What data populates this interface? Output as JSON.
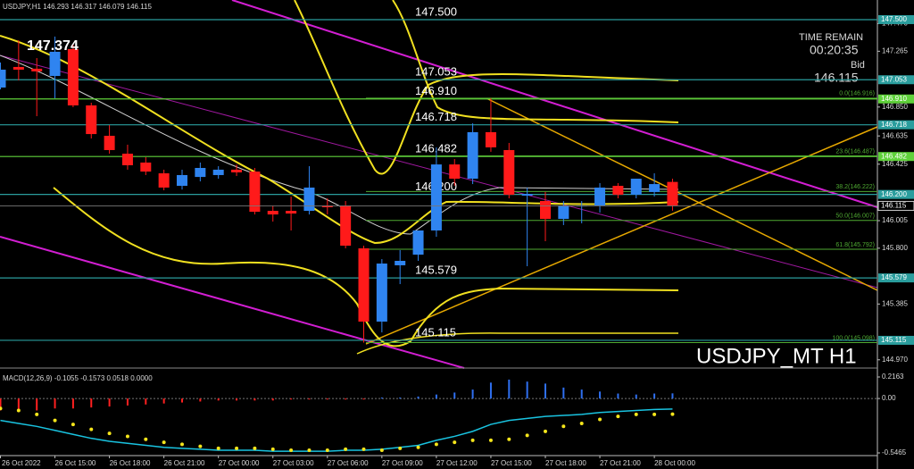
{
  "chart_data": [
    {
      "type": "candlestick",
      "header": "USDJPY,H1  146.293 146.317 146.079 146.115",
      "watermark": "USDJPY_MT H1",
      "timer_title": "TIME REMAIN",
      "timer": "00:20:35",
      "bid_label": "Bid",
      "bid": 146.115,
      "up_color": "#2f84f0",
      "down_color": "#ff1a1a",
      "ylim": [
        144.922,
        147.646
      ],
      "yticks": [
        {
          "value": 147.47,
          "label": "147.470"
        },
        147.265,
        {
          "value": 146.85,
          "label": "146.850"
        },
        146.635,
        146.425,
        146.005,
        {
          "value": 145.8,
          "label": "145.800"
        },
        145.385,
        {
          "value": 144.97,
          "label": "144.970"
        }
      ],
      "categories": [
        "26 Oct 2022",
        null,
        null,
        "26 Oct 15:00",
        null,
        null,
        "26 Oct 18:00",
        null,
        null,
        "26 Oct 21:00",
        null,
        null,
        "27 Oct 00:00",
        null,
        null,
        "27 Oct 03:00",
        null,
        null,
        "27 Oct 06:00",
        null,
        null,
        "27 Oct 09:00",
        null,
        null,
        "27 Oct 12:00",
        null,
        null,
        "27 Oct 15:00",
        null,
        null,
        "27 Oct 18:00",
        null,
        null,
        "27 Oct 21:00",
        null,
        null,
        "28 Oct 00:00",
        null
      ],
      "candles": [
        [
          146.995,
          147.181,
          146.982,
          147.128
        ],
        [
          147.148,
          147.347,
          147.048,
          147.128
        ],
        [
          147.135,
          147.214,
          146.782,
          147.115
        ],
        [
          147.081,
          147.374,
          146.915,
          147.261
        ],
        [
          147.281,
          147.314,
          146.849,
          146.862
        ],
        [
          146.862,
          146.882,
          146.616,
          146.649
        ],
        [
          146.636,
          146.716,
          146.503,
          146.53
        ],
        [
          146.503,
          146.57,
          146.384,
          146.417
        ],
        [
          146.437,
          146.477,
          146.344,
          146.37
        ],
        [
          146.357,
          146.384,
          146.231,
          146.251
        ],
        [
          146.264,
          146.384,
          146.237,
          146.344
        ],
        [
          146.33,
          146.437,
          146.297,
          146.397
        ],
        [
          146.344,
          146.41,
          146.317,
          146.384
        ],
        [
          146.384,
          146.423,
          146.337,
          146.364
        ],
        [
          146.37,
          146.397,
          146.051,
          146.071
        ],
        [
          146.078,
          146.118,
          145.998,
          146.051
        ],
        [
          146.078,
          146.184,
          145.932,
          146.058
        ],
        [
          146.078,
          146.41,
          146.051,
          146.251
        ],
        [
          146.118,
          146.171,
          146.051,
          146.105
        ],
        [
          146.118,
          146.151,
          145.799,
          145.819
        ],
        [
          145.799,
          145.819,
          145.098,
          145.254
        ],
        [
          145.254,
          145.719,
          145.174,
          145.686
        ],
        [
          145.673,
          145.786,
          145.533,
          145.706
        ],
        [
          145.752,
          145.932,
          145.706,
          145.932
        ],
        [
          145.932,
          146.55,
          145.885,
          146.423
        ],
        [
          146.423,
          146.463,
          146.264,
          146.317
        ],
        [
          146.317,
          146.729,
          146.277,
          146.663
        ],
        [
          146.663,
          146.916,
          146.517,
          146.55
        ],
        [
          146.53,
          146.583,
          146.171,
          146.198
        ],
        [
          146.191,
          146.251,
          145.666,
          146.204
        ],
        [
          146.151,
          146.218,
          145.852,
          146.018
        ],
        [
          146.018,
          146.151,
          145.972,
          146.118
        ],
        [
          146.111,
          146.151,
          145.985,
          146.118
        ],
        [
          146.118,
          146.284,
          146.065,
          146.251
        ],
        [
          146.264,
          146.284,
          146.171,
          146.198
        ],
        [
          146.198,
          146.317,
          146.171,
          146.317
        ],
        [
          146.218,
          146.357,
          146.184,
          146.277
        ],
        [
          146.293,
          146.317,
          146.079,
          146.115
        ]
      ],
      "levels": [
        {
          "value": 147.5,
          "label": "147.500",
          "color": "#2a9d9d"
        },
        {
          "value": 147.053,
          "label": "147.053",
          "color": "#2a9d9d"
        },
        {
          "value": 146.91,
          "label": "146.910",
          "color": "#5fd13a"
        },
        {
          "value": 146.718,
          "label": "146.718",
          "color": "#2a9d9d"
        },
        {
          "value": 146.482,
          "label": "146.482",
          "color": "#5fd13a"
        },
        {
          "value": 146.2,
          "label": "146.200",
          "color": "#2a9d9d"
        },
        {
          "value": 145.579,
          "label": "145.579",
          "color": "#2a9d9d"
        },
        {
          "value": 145.115,
          "label": "145.115",
          "color": "#2a9d9d"
        }
      ],
      "fib_color": "#4faa32",
      "fibs": [
        {
          "value": 146.916,
          "label": "0.0(146.916)"
        },
        {
          "value": 146.487,
          "label": "23.6(146.487)"
        },
        {
          "value": 146.222,
          "label": "38.2(146.222)"
        },
        {
          "value": 146.007,
          "label": "50.0(146.007)"
        },
        {
          "value": 145.792,
          "label": "61.8(145.792)"
        },
        {
          "value": 145.098,
          "label": "100.0(145.098)"
        }
      ]
    },
    {
      "type": "macd",
      "title": "MACD(12,26,9) -0.1055 -0.1573 0.0518 0.0000",
      "ylim": [
        -0.5465,
        0.2163
      ],
      "yticks": [
        0.2163,
        {
          "value": 0,
          "label": "0.00"
        },
        -0.5465
      ],
      "hist_up_color": "#2f6ff0",
      "hist_down_color": "#ff2020",
      "macd_color": "#19c3e0",
      "signal_color": "#f5e51b",
      "histogram": [
        -0.12,
        -0.13,
        -0.12,
        -0.1,
        -0.1,
        -0.09,
        -0.08,
        -0.07,
        -0.06,
        -0.05,
        -0.04,
        -0.03,
        -0.02,
        -0.02,
        -0.02,
        -0.02,
        -0.01,
        -0.01,
        -0.01,
        -0.01,
        -0.01,
        0.01,
        0.01,
        0.02,
        0.04,
        0.06,
        0.09,
        0.16,
        0.19,
        0.17,
        0.15,
        0.11,
        0.09,
        0.07,
        0.05,
        0.04,
        0.05,
        0.0518
      ],
      "macd": [
        -0.22,
        -0.25,
        -0.28,
        -0.32,
        -0.36,
        -0.4,
        -0.43,
        -0.45,
        -0.47,
        -0.49,
        -0.5,
        -0.51,
        -0.52,
        -0.52,
        -0.52,
        -0.53,
        -0.53,
        -0.53,
        -0.53,
        -0.52,
        -0.52,
        -0.51,
        -0.49,
        -0.47,
        -0.42,
        -0.38,
        -0.33,
        -0.26,
        -0.22,
        -0.2,
        -0.18,
        -0.17,
        -0.16,
        -0.14,
        -0.13,
        -0.12,
        -0.11,
        -0.1055
      ],
      "signal": [
        -0.1,
        -0.12,
        -0.16,
        -0.22,
        -0.26,
        -0.31,
        -0.35,
        -0.38,
        -0.41,
        -0.44,
        -0.46,
        -0.48,
        -0.5,
        -0.5,
        -0.5,
        -0.51,
        -0.52,
        -0.52,
        -0.52,
        -0.51,
        -0.51,
        -0.52,
        -0.5,
        -0.49,
        -0.46,
        -0.44,
        -0.42,
        -0.42,
        -0.41,
        -0.37,
        -0.33,
        -0.28,
        -0.25,
        -0.21,
        -0.18,
        -0.16,
        -0.16,
        -0.1573
      ]
    }
  ]
}
